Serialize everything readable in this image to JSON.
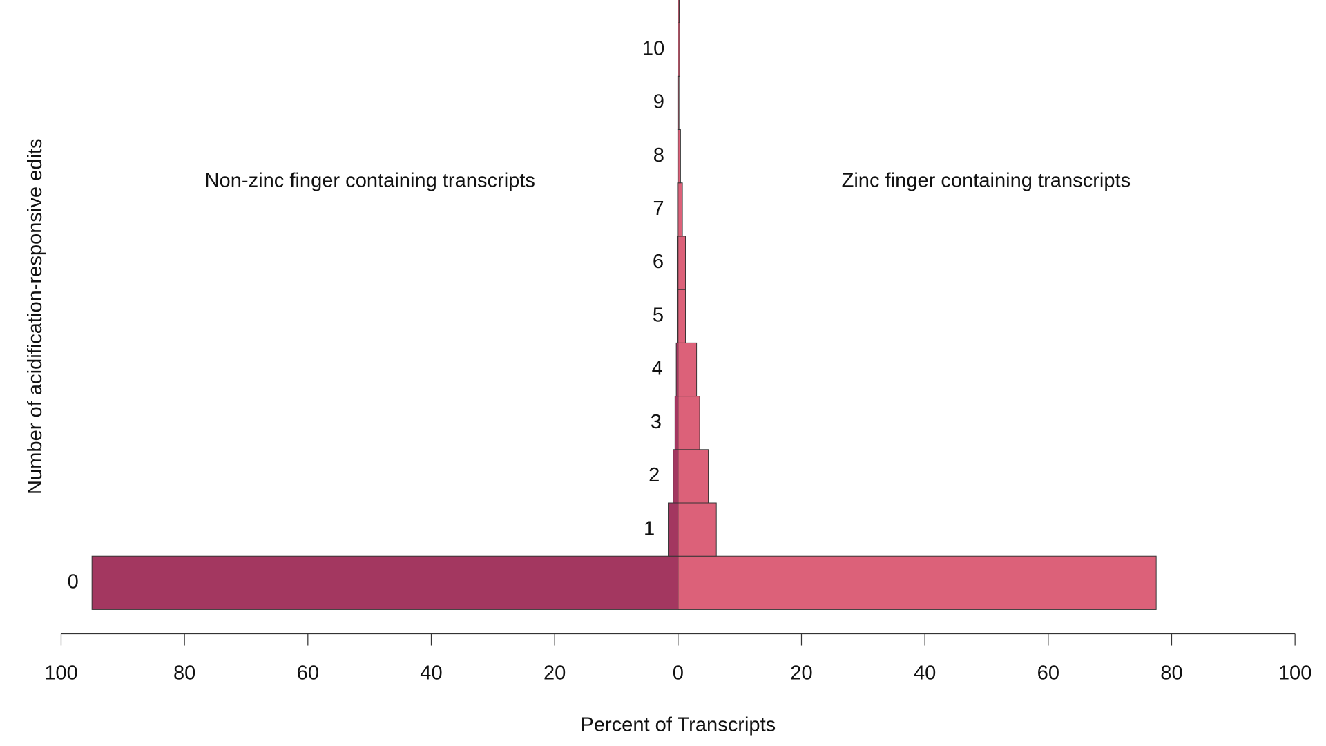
{
  "chart_data": {
    "type": "bar",
    "orientation": "back-to-back",
    "xlabel": "Percent of Transcripts",
    "ylabel": "Number of acidification-responsive edits",
    "annotations": [
      "Non-zinc finger containing transcripts",
      "Zinc finger containing transcripts"
    ],
    "categories": [
      "0",
      "1",
      "2",
      "3",
      "4",
      "5",
      "6",
      "7",
      "8",
      "9",
      "10",
      null
    ],
    "series": [
      {
        "name": "Non-zinc finger containing transcripts",
        "side": "left",
        "color": "#a33760",
        "values": [
          95.0,
          1.6,
          0.8,
          0.5,
          0.3,
          0.15,
          0.15,
          0.1,
          0.05,
          0.05,
          0.02,
          0.02
        ]
      },
      {
        "name": "Zinc finger containing transcripts",
        "side": "right",
        "color": "#dc6179",
        "values": [
          77.5,
          6.2,
          4.9,
          3.5,
          3.0,
          1.2,
          1.2,
          0.7,
          0.4,
          0.15,
          0.25,
          0.2
        ]
      }
    ],
    "xlim": [
      0,
      100
    ],
    "xticks": [
      0,
      20,
      40,
      60,
      80,
      100
    ]
  }
}
